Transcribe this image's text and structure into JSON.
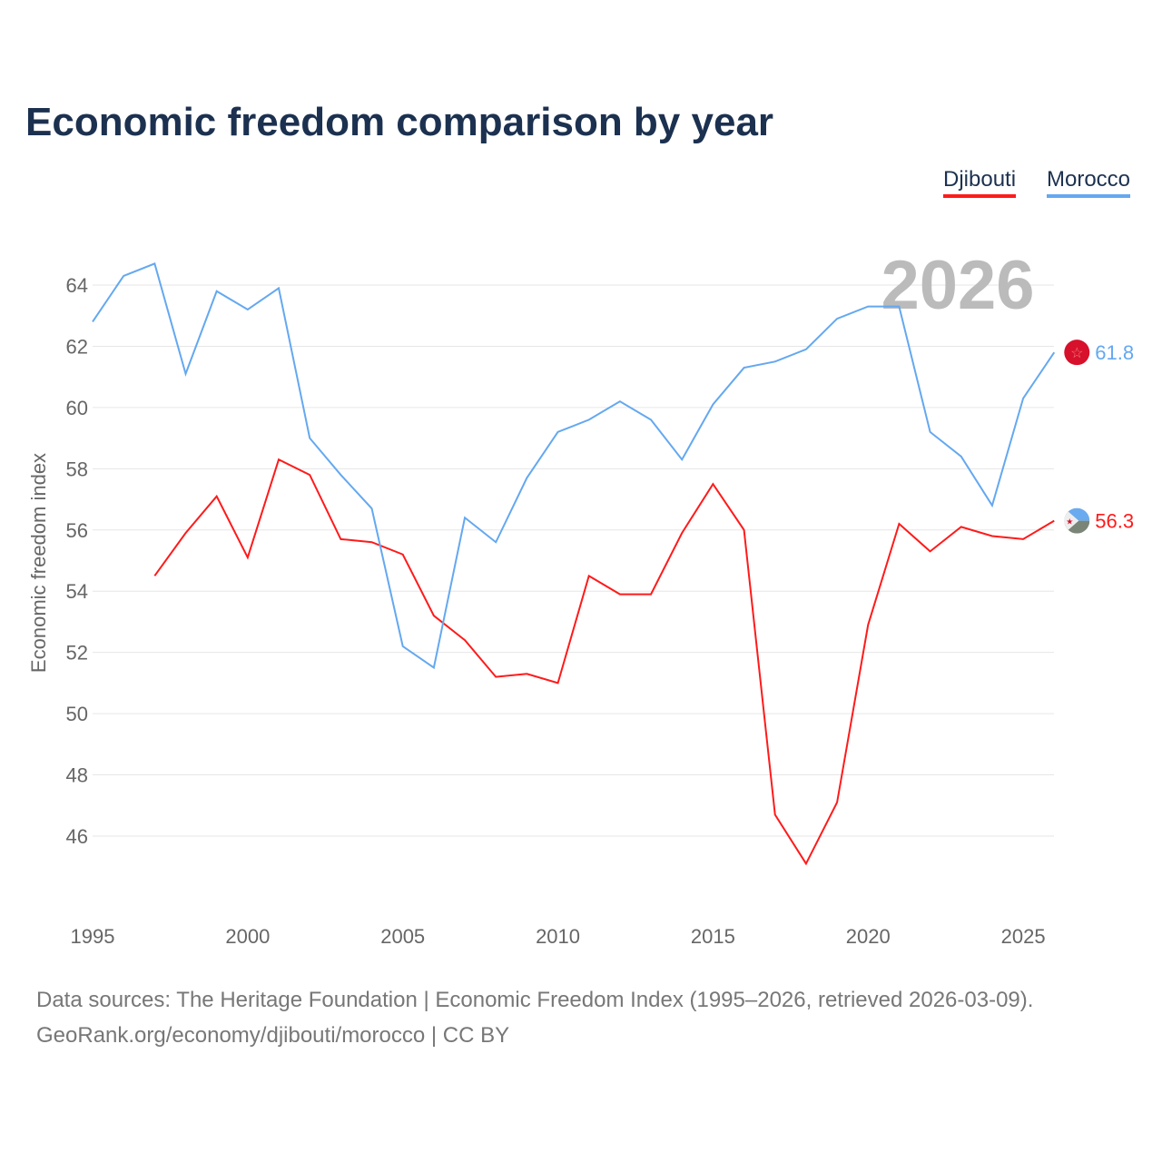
{
  "chart_data": {
    "type": "line",
    "title": "Economic freedom comparison by year",
    "xlabel": "",
    "ylabel": "Economic freedom index",
    "current_year_label": "2026",
    "xlim": [
      1995,
      2026
    ],
    "ylim": [
      44,
      65
    ],
    "x_ticks": [
      "1995",
      "2000",
      "2005",
      "2010",
      "2015",
      "2020",
      "2025"
    ],
    "y_ticks": [
      "46",
      "48",
      "50",
      "52",
      "54",
      "56",
      "58",
      "60",
      "62",
      "64"
    ],
    "grid": true,
    "legend_position": "top-right",
    "series": [
      {
        "name": "Djibouti",
        "color": "#ff1a1a",
        "end_label": "56.3",
        "x": [
          1997,
          1998,
          1999,
          2000,
          2001,
          2002,
          2003,
          2004,
          2005,
          2006,
          2007,
          2008,
          2009,
          2010,
          2011,
          2012,
          2013,
          2014,
          2015,
          2016,
          2017,
          2018,
          2019,
          2020,
          2021,
          2022,
          2023,
          2024,
          2025,
          2026
        ],
        "values": [
          54.5,
          55.9,
          57.1,
          55.1,
          58.3,
          57.8,
          55.7,
          55.6,
          55.2,
          53.2,
          52.4,
          51.2,
          51.3,
          51.0,
          54.5,
          53.9,
          53.9,
          55.9,
          57.5,
          56.0,
          46.7,
          45.1,
          47.1,
          52.9,
          56.2,
          55.3,
          56.1,
          55.8,
          55.7,
          56.3
        ]
      },
      {
        "name": "Morocco",
        "color": "#64a8f0",
        "end_label": "61.8",
        "x": [
          1995,
          1996,
          1997,
          1998,
          1999,
          2000,
          2001,
          2002,
          2003,
          2004,
          2005,
          2006,
          2007,
          2008,
          2009,
          2010,
          2011,
          2012,
          2013,
          2014,
          2015,
          2016,
          2017,
          2018,
          2019,
          2020,
          2021,
          2022,
          2023,
          2024,
          2025,
          2026
        ],
        "values": [
          62.8,
          64.3,
          64.7,
          61.1,
          63.8,
          63.2,
          63.9,
          59.0,
          57.8,
          56.7,
          52.2,
          51.5,
          56.4,
          55.6,
          57.7,
          59.2,
          59.6,
          60.2,
          59.6,
          58.3,
          60.1,
          61.3,
          61.5,
          61.9,
          62.9,
          63.3,
          63.3,
          59.2,
          58.4,
          56.8,
          60.3,
          61.8
        ]
      }
    ]
  },
  "sources": {
    "line1": "Data sources: The Heritage Foundation | Economic Freedom Index (1995–2026, retrieved 2026-03-09).",
    "line2": "GeoRank.org/economy/djibouti/morocco | CC BY"
  }
}
